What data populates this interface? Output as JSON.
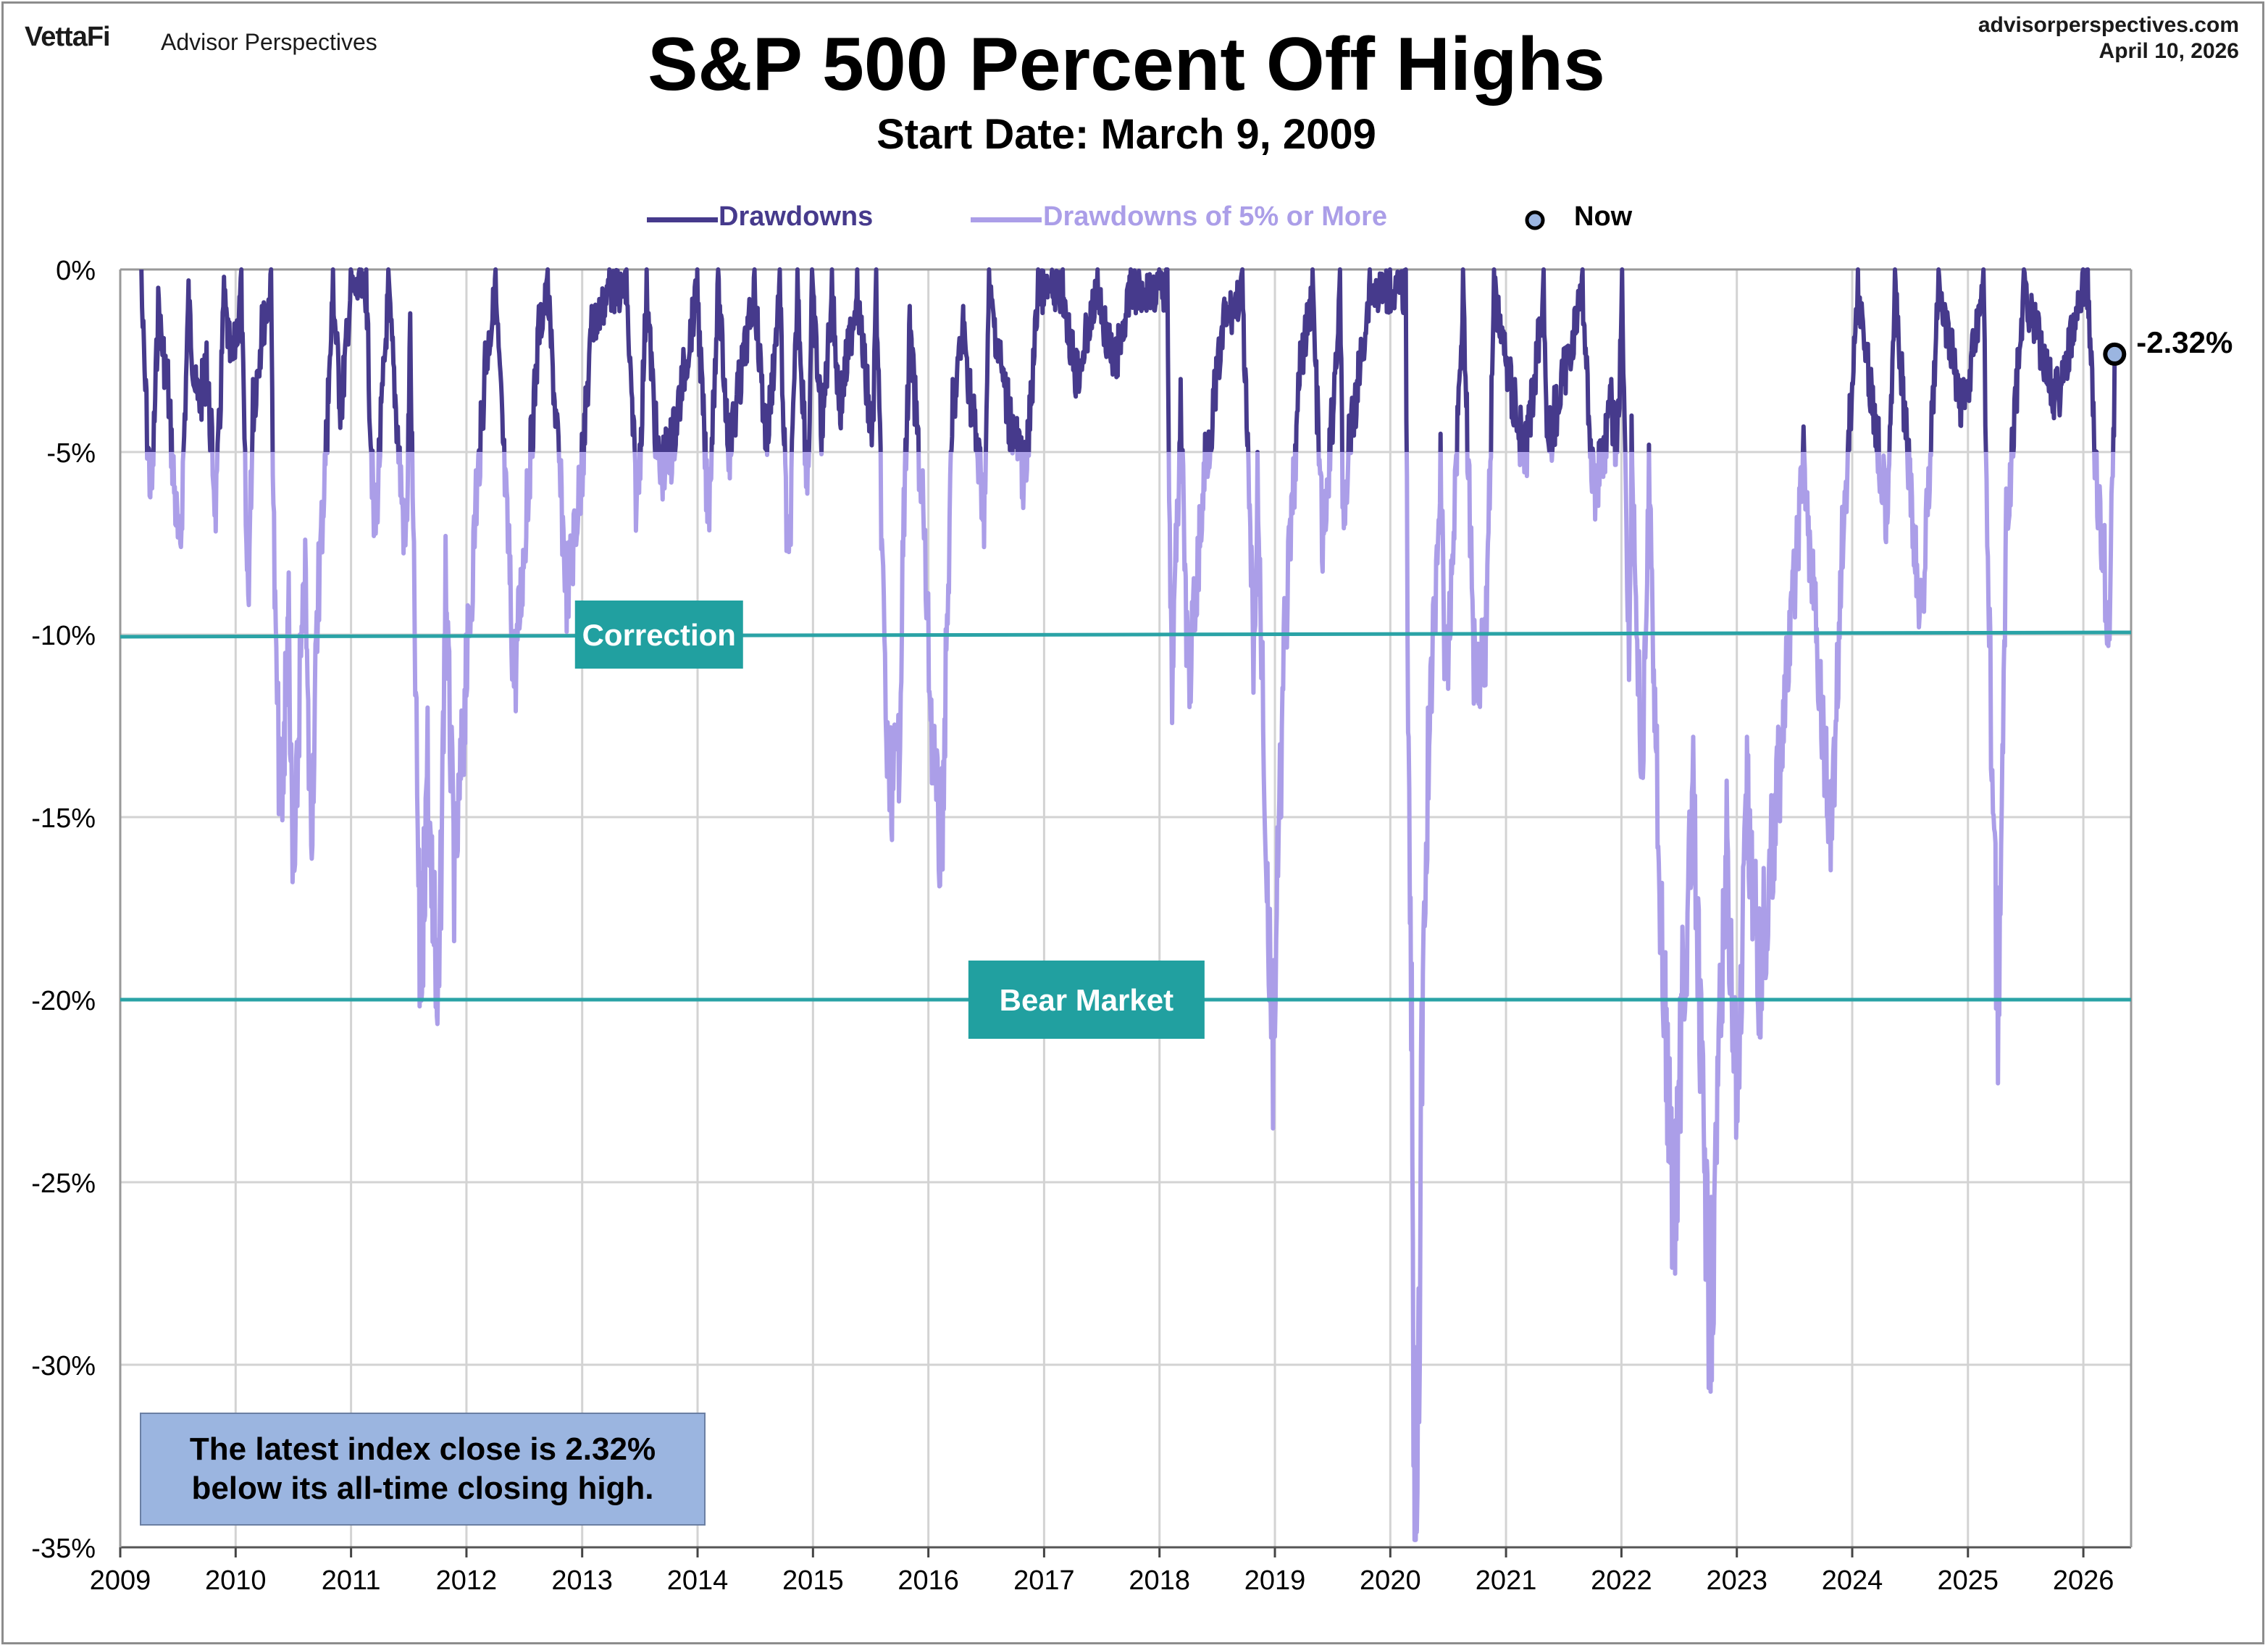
{
  "header": {
    "brand": "VettaFi",
    "brand_sub": "Advisor Perspectives",
    "site": "advisorperspectives.com",
    "date": "April 10, 2026"
  },
  "info_box": {
    "line1": "The latest index close is 2.32%",
    "line2": "below its all-time closing high."
  },
  "colors": {
    "drawdown": "#463a8c",
    "drawdown_5pct": "#ab9ee8",
    "reference_line": "#2aa3a6",
    "annotation_box": "#21a0a0",
    "info_box": "#9bb5e0",
    "grid": "#d3d3d3"
  },
  "chart_data": {
    "type": "area",
    "title": "S&P 500 Percent Off Highs",
    "subtitle": "Start Date: March 9, 2009",
    "xlim": [
      "2009-01-01",
      "2026-06-01"
    ],
    "ylim": [
      -35,
      0
    ],
    "x_ticks": [
      "2009",
      "2010",
      "2011",
      "2012",
      "2013",
      "2014",
      "2015",
      "2016",
      "2017",
      "2018",
      "2019",
      "2020",
      "2021",
      "2022",
      "2023",
      "2024",
      "2025",
      "2026"
    ],
    "y_ticks": [
      {
        "value": 0,
        "label": "0%"
      },
      {
        "value": -5,
        "label": "-5%"
      },
      {
        "value": -10,
        "label": "-10%"
      },
      {
        "value": -15,
        "label": "-15%"
      },
      {
        "value": -20,
        "label": "-20%"
      },
      {
        "value": -25,
        "label": "-25%"
      },
      {
        "value": -30,
        "label": "-30%"
      },
      {
        "value": -35,
        "label": "-35%"
      }
    ],
    "grid": true,
    "legend_position": "top-center",
    "legend": [
      {
        "label": "Drawdowns",
        "kind": "line"
      },
      {
        "label": "Drawdowns of 5% or More",
        "kind": "line"
      },
      {
        "label": "Now",
        "kind": "marker"
      }
    ],
    "threshold": -5,
    "series": [
      {
        "name": "Drawdowns",
        "points": [
          [
            "2009-03-09",
            0
          ],
          [
            "2009-03-25",
            -3.3
          ],
          [
            "2009-04-10",
            -5.4
          ],
          [
            "2009-05-01",
            -0.5
          ],
          [
            "2009-06-01",
            -2.5
          ],
          [
            "2009-07-08",
            -7.0
          ],
          [
            "2009-08-05",
            -0.3
          ],
          [
            "2009-09-01",
            -3.0
          ],
          [
            "2009-10-01",
            -2.0
          ],
          [
            "2009-11-01",
            -5.6
          ],
          [
            "2009-11-25",
            -0.2
          ],
          [
            "2009-12-20",
            -2.0
          ],
          [
            "2010-01-19",
            0
          ],
          [
            "2010-02-08",
            -8.1
          ],
          [
            "2010-02-25",
            -3.0
          ],
          [
            "2010-03-25",
            -1.0
          ],
          [
            "2010-04-23",
            0
          ],
          [
            "2010-05-06",
            -8.8
          ],
          [
            "2010-05-25",
            -13.7
          ],
          [
            "2010-06-07",
            -10.5
          ],
          [
            "2010-06-18",
            -8.3
          ],
          [
            "2010-07-02",
            -16.0
          ],
          [
            "2010-07-23",
            -10.0
          ],
          [
            "2010-08-09",
            -7.4
          ],
          [
            "2010-08-26",
            -14.0
          ],
          [
            "2010-09-20",
            -7.5
          ],
          [
            "2010-10-20",
            -3.0
          ],
          [
            "2010-11-05",
            0
          ],
          [
            "2010-11-30",
            -3.0
          ],
          [
            "2010-12-31",
            0
          ],
          [
            "2011-02-18",
            0
          ],
          [
            "2011-03-16",
            -6.4
          ],
          [
            "2011-04-29",
            0
          ],
          [
            "2011-06-24",
            -6.8
          ],
          [
            "2011-07-07",
            -1.2
          ],
          [
            "2011-08-08",
            -17.9
          ],
          [
            "2011-08-19",
            -15.3
          ],
          [
            "2011-08-31",
            -12.0
          ],
          [
            "2011-09-22",
            -16.5
          ],
          [
            "2011-10-03",
            -19.4
          ],
          [
            "2011-10-27",
            -7.3
          ],
          [
            "2011-11-25",
            -15.1
          ],
          [
            "2011-12-30",
            -10.0
          ],
          [
            "2012-01-31",
            -5.5
          ],
          [
            "2012-02-29",
            -2.0
          ],
          [
            "2012-04-02",
            0
          ],
          [
            "2012-05-15",
            -7.0
          ],
          [
            "2012-06-01",
            -9.9
          ],
          [
            "2012-07-10",
            -5.5
          ],
          [
            "2012-08-17",
            -1.0
          ],
          [
            "2012-09-14",
            0
          ],
          [
            "2012-11-15",
            -7.7
          ],
          [
            "2012-12-31",
            -4.5
          ],
          [
            "2013-01-31",
            -1.0
          ],
          [
            "2013-03-28",
            0
          ],
          [
            "2013-05-21",
            0
          ],
          [
            "2013-06-24",
            -5.8
          ],
          [
            "2013-07-24",
            0
          ],
          [
            "2013-08-30",
            -4.6
          ],
          [
            "2013-10-08",
            -4.1
          ],
          [
            "2013-12-31",
            0
          ],
          [
            "2014-02-03",
            -5.8
          ],
          [
            "2014-03-07",
            0
          ],
          [
            "2014-04-11",
            -4.0
          ],
          [
            "2014-06-30",
            0
          ],
          [
            "2014-08-07",
            -3.9
          ],
          [
            "2014-09-18",
            0
          ],
          [
            "2014-10-15",
            -7.4
          ],
          [
            "2014-11-13",
            0
          ],
          [
            "2014-12-16",
            -5.0
          ],
          [
            "2014-12-29",
            0
          ],
          [
            "2015-01-30",
            -3.6
          ],
          [
            "2015-03-02",
            0
          ],
          [
            "2015-03-26",
            -3.0
          ],
          [
            "2015-05-21",
            0
          ],
          [
            "2015-07-08",
            -3.9
          ],
          [
            "2015-07-20",
            0
          ],
          [
            "2015-08-25",
            -12.4
          ],
          [
            "2015-09-28",
            -12.2
          ],
          [
            "2015-10-15",
            -6.0
          ],
          [
            "2015-11-03",
            -1.0
          ],
          [
            "2015-12-14",
            -5.5
          ],
          [
            "2016-01-20",
            -12.5
          ],
          [
            "2016-02-11",
            -14.2
          ],
          [
            "2016-03-18",
            -3.0
          ],
          [
            "2016-04-20",
            -1.0
          ],
          [
            "2016-06-27",
            -5.6
          ],
          [
            "2016-07-11",
            0
          ],
          [
            "2016-09-09",
            -3.0
          ],
          [
            "2016-11-04",
            -4.8
          ],
          [
            "2016-12-13",
            0
          ],
          [
            "2017-03-01",
            0
          ],
          [
            "2017-04-13",
            -2.2
          ],
          [
            "2017-06-19",
            0
          ],
          [
            "2017-08-10",
            -2.0
          ],
          [
            "2017-10-02",
            0
          ],
          [
            "2017-12-31",
            0
          ],
          [
            "2018-01-26",
            0
          ],
          [
            "2018-02-08",
            -10.2
          ],
          [
            "2018-03-09",
            -3.0
          ],
          [
            "2018-04-02",
            -10.1
          ],
          [
            "2018-05-25",
            -4.5
          ],
          [
            "2018-07-25",
            -0.8
          ],
          [
            "2018-09-20",
            0
          ],
          [
            "2018-10-29",
            -9.9
          ],
          [
            "2018-11-07",
            -5.0
          ],
          [
            "2018-11-23",
            -10.2
          ],
          [
            "2018-12-24",
            -19.8
          ],
          [
            "2019-01-31",
            -9.0
          ],
          [
            "2019-03-22",
            -2.0
          ],
          [
            "2019-04-30",
            0
          ],
          [
            "2019-06-03",
            -6.8
          ],
          [
            "2019-07-26",
            0
          ],
          [
            "2019-08-05",
            -6.1
          ],
          [
            "2019-08-23",
            -4.0
          ],
          [
            "2019-10-28",
            0
          ],
          [
            "2019-12-31",
            0
          ],
          [
            "2020-02-19",
            0
          ],
          [
            "2020-02-28",
            -12.8
          ],
          [
            "2020-03-09",
            -19.0
          ],
          [
            "2020-03-16",
            -29.5
          ],
          [
            "2020-03-23",
            -33.9
          ],
          [
            "2020-04-09",
            -20.0
          ],
          [
            "2020-04-29",
            -12.0
          ],
          [
            "2020-06-08",
            -4.5
          ],
          [
            "2020-06-26",
            -10.5
          ],
          [
            "2020-08-18",
            0
          ],
          [
            "2020-09-23",
            -9.6
          ],
          [
            "2020-10-30",
            -8.7
          ],
          [
            "2020-11-24",
            0
          ],
          [
            "2021-01-29",
            -3.0
          ],
          [
            "2021-03-04",
            -4.2
          ],
          [
            "2021-04-30",
            0
          ],
          [
            "2021-05-12",
            -4.0
          ],
          [
            "2021-08-31",
            0
          ],
          [
            "2021-10-04",
            -5.1
          ],
          [
            "2021-11-30",
            -3.0
          ],
          [
            "2021-12-20",
            -4.0
          ],
          [
            "2022-01-03",
            0
          ],
          [
            "2022-01-27",
            -9.8
          ],
          [
            "2022-02-02",
            -4.0
          ],
          [
            "2022-03-08",
            -12.8
          ],
          [
            "2022-03-29",
            -4.8
          ],
          [
            "2022-05-09",
            -16.8
          ],
          [
            "2022-05-20",
            -18.7
          ],
          [
            "2022-06-16",
            -23.6
          ],
          [
            "2022-07-13",
            -18.0
          ],
          [
            "2022-08-16",
            -12.8
          ],
          [
            "2022-09-30",
            -24.8
          ],
          [
            "2022-10-12",
            -25.4
          ],
          [
            "2022-11-30",
            -14.0
          ],
          [
            "2022-12-28",
            -20.0
          ],
          [
            "2023-01-05",
            -20.8
          ],
          [
            "2023-02-02",
            -12.8
          ],
          [
            "2023-03-13",
            -17.5
          ],
          [
            "2023-04-20",
            -14.4
          ],
          [
            "2023-06-30",
            -7.7
          ],
          [
            "2023-07-31",
            -4.3
          ],
          [
            "2023-10-27",
            -14.0
          ],
          [
            "2023-11-30",
            -6.5
          ],
          [
            "2024-01-19",
            0
          ],
          [
            "2024-04-19",
            -5.5
          ],
          [
            "2024-05-15",
            0
          ],
          [
            "2024-08-05",
            -8.5
          ],
          [
            "2024-09-30",
            0
          ],
          [
            "2024-12-18",
            -3.0
          ],
          [
            "2025-02-19",
            0
          ],
          [
            "2025-03-13",
            -10.1
          ],
          [
            "2025-04-08",
            -18.9
          ],
          [
            "2025-05-02",
            -6.0
          ],
          [
            "2025-06-27",
            0
          ],
          [
            "2025-10-10",
            -2.7
          ],
          [
            "2025-12-31",
            0
          ],
          [
            "2026-01-15",
            0
          ],
          [
            "2026-02-12",
            -5.0
          ],
          [
            "2026-03-09",
            -7.0
          ],
          [
            "2026-03-23",
            -9.1
          ],
          [
            "2026-04-10",
            -2.32
          ]
        ]
      }
    ],
    "annotations": [
      {
        "label": "Correction",
        "y": -10,
        "x_center": "2013-09-01"
      },
      {
        "label": "Bear Market",
        "y": -20,
        "x_center": "2017-05-15"
      }
    ],
    "latest": {
      "label": "-2.32%",
      "date": "2026-04-10",
      "value": -2.32
    }
  }
}
